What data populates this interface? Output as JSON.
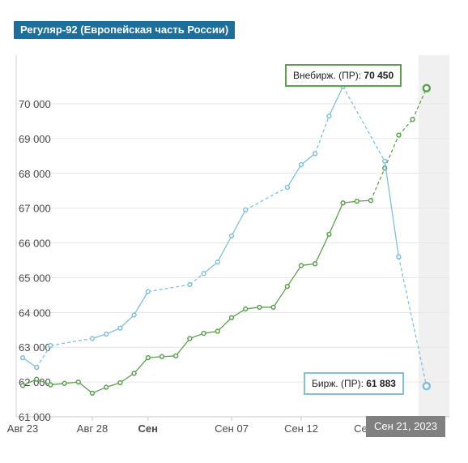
{
  "header": {
    "title": "Регуляр-92 (Европейская часть России)"
  },
  "tooltip_green": {
    "label": "Внебирж. (ПР):",
    "value": "70 450"
  },
  "tooltip_blue": {
    "label": "Бирж. (ПР):",
    "value": "61 883"
  },
  "date_flag": "Сен 21, 2023",
  "colors": {
    "green": "#5aa34a",
    "blue": "#7fc0e0",
    "badge": "#1a6f9c",
    "grid": "#e6e6e6"
  },
  "chart_data": {
    "type": "line",
    "title": "Регуляр-92 (Европейская часть России)",
    "ylim": [
      61000,
      71400
    ],
    "y_ticks": [
      61000,
      62000,
      63000,
      64000,
      65000,
      66000,
      67000,
      68000,
      69000,
      70000
    ],
    "y_tick_labels": [
      "61 000",
      "62 000",
      "63 000",
      "64 000",
      "65 000",
      "66 000",
      "67 000",
      "68 000",
      "69 000",
      "70 000"
    ],
    "x_tick_labels": [
      {
        "label": "Авг 23",
        "day": 0,
        "bold": false
      },
      {
        "label": "Авг 28",
        "day": 5,
        "bold": false
      },
      {
        "label": "Сен",
        "day": 9,
        "bold": true
      },
      {
        "label": "Сен 07",
        "day": 15,
        "bold": false
      },
      {
        "label": "Сен 12",
        "day": 20,
        "bold": false
      },
      {
        "label": "Сен 17",
        "day": 25,
        "bold": false
      }
    ],
    "series": [
      {
        "name": "Внебирж. (ПР)",
        "color": "#5aa34a",
        "points": [
          [
            0,
            61900
          ],
          [
            1,
            62080
          ],
          [
            2,
            61920
          ],
          [
            3,
            61960
          ],
          [
            4,
            62000
          ],
          [
            5,
            61680
          ],
          [
            6,
            61850
          ],
          [
            7,
            61980
          ],
          [
            8,
            62250
          ],
          [
            9,
            62700
          ],
          [
            10,
            62730
          ],
          [
            11,
            62750
          ],
          [
            12,
            63250
          ],
          [
            13,
            63400
          ],
          [
            14,
            63460
          ],
          [
            15,
            63850
          ],
          [
            16,
            64100
          ],
          [
            17,
            64150
          ],
          [
            18,
            64150
          ],
          [
            19,
            64750
          ],
          [
            20,
            65350
          ],
          [
            21,
            65400
          ],
          [
            22,
            66250
          ],
          [
            23,
            67150
          ],
          [
            24,
            67200
          ],
          [
            25,
            67220
          ],
          [
            26,
            68150
          ],
          [
            27,
            69100
          ],
          [
            28,
            69550
          ],
          [
            29,
            70450
          ]
        ],
        "dashed_from_index": 25
      },
      {
        "name": "Бирж. (ПР)",
        "color": "#7fc0e0",
        "points": [
          [
            0,
            62700
          ],
          [
            1,
            62420
          ],
          [
            2,
            63050
          ],
          [
            5,
            63250
          ],
          [
            6,
            63380
          ],
          [
            7,
            63550
          ],
          [
            8,
            63930
          ],
          [
            9,
            64600
          ],
          [
            12,
            64800
          ],
          [
            13,
            65120
          ],
          [
            14,
            65450
          ],
          [
            15,
            66200
          ],
          [
            16,
            66950
          ],
          [
            19,
            67600
          ],
          [
            20,
            68250
          ],
          [
            21,
            68570
          ],
          [
            22,
            69650
          ],
          [
            23,
            70500
          ],
          [
            26,
            68350
          ],
          [
            27,
            65600
          ],
          [
            29,
            61883
          ]
        ],
        "dashed_gaps": [
          [
            1,
            2
          ],
          [
            2,
            3
          ],
          [
            8,
            9
          ],
          [
            12,
            13
          ],
          [
            15,
            16
          ]
        ]
      }
    ]
  }
}
